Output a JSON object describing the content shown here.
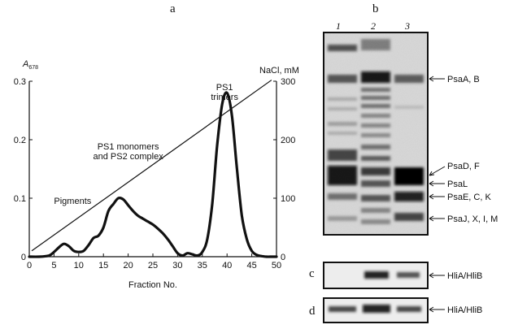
{
  "panel_labels": {
    "a": "a",
    "b": "b",
    "c": "c",
    "d": "d"
  },
  "chart_data": {
    "type": "line",
    "xlabel": "Fraction No.",
    "ylabel": "A678",
    "ylabel_main": "A",
    "ylabel_sub": "678",
    "y2label": "NaCl, mM",
    "xlim": [
      0,
      50
    ],
    "ylim": [
      0,
      0.3
    ],
    "y2lim": [
      0,
      300
    ],
    "x_ticks": [
      "0",
      "5",
      "10",
      "15",
      "20",
      "25",
      "30",
      "35",
      "40",
      "45",
      "50"
    ],
    "y_ticks": [
      "0",
      "0.1",
      "0.2",
      "0.3"
    ],
    "y2_ticks": [
      "0",
      "100",
      "200",
      "300"
    ],
    "series": [
      {
        "role": "absorbance",
        "x": [
          0,
          2,
          4,
          5,
          6,
          7,
          8,
          9,
          10,
          11,
          12,
          13,
          14,
          15,
          16,
          17,
          18,
          19,
          20,
          21,
          22,
          23,
          24,
          25,
          26,
          27,
          28,
          29,
          30,
          31,
          32,
          33,
          34,
          35,
          36,
          37,
          38,
          39,
          40,
          41,
          42,
          43,
          44,
          45,
          46,
          47,
          48,
          49,
          50
        ],
        "y": [
          0,
          0,
          0.002,
          0.008,
          0.016,
          0.022,
          0.018,
          0.01,
          0.008,
          0.01,
          0.02,
          0.032,
          0.036,
          0.05,
          0.078,
          0.09,
          0.1,
          0.098,
          0.088,
          0.078,
          0.07,
          0.065,
          0.06,
          0.055,
          0.048,
          0.04,
          0.03,
          0.018,
          0.006,
          0.002,
          0.006,
          0.004,
          0.002,
          0.008,
          0.03,
          0.09,
          0.19,
          0.26,
          0.28,
          0.24,
          0.15,
          0.07,
          0.03,
          0.01,
          0.003,
          0.001,
          0,
          0,
          0
        ]
      },
      {
        "role": "nacl_gradient",
        "x": [
          0.5,
          49
        ],
        "y2": [
          10,
          302
        ]
      }
    ],
    "annotations": [
      {
        "text": "Pigments",
        "x": 5,
        "y": 0.09
      },
      {
        "text": "PS1 monomers",
        "x": 20,
        "y": 0.183
      },
      {
        "text": "and PS2 complex",
        "x": 20,
        "y": 0.167
      },
      {
        "text": "PS1",
        "x": 39.5,
        "y": 0.285
      },
      {
        "text": "trimers",
        "x": 39.5,
        "y": 0.268
      }
    ]
  },
  "gel": {
    "lanes": [
      "1",
      "2",
      "3"
    ],
    "bands_b": [
      "PsaA, B",
      "PsaD, F",
      "PsaL",
      "PsaE, C, K",
      "PsaJ, X, I, M"
    ],
    "band_c": "HliA/HliB",
    "band_d": "HliA/HliB"
  }
}
